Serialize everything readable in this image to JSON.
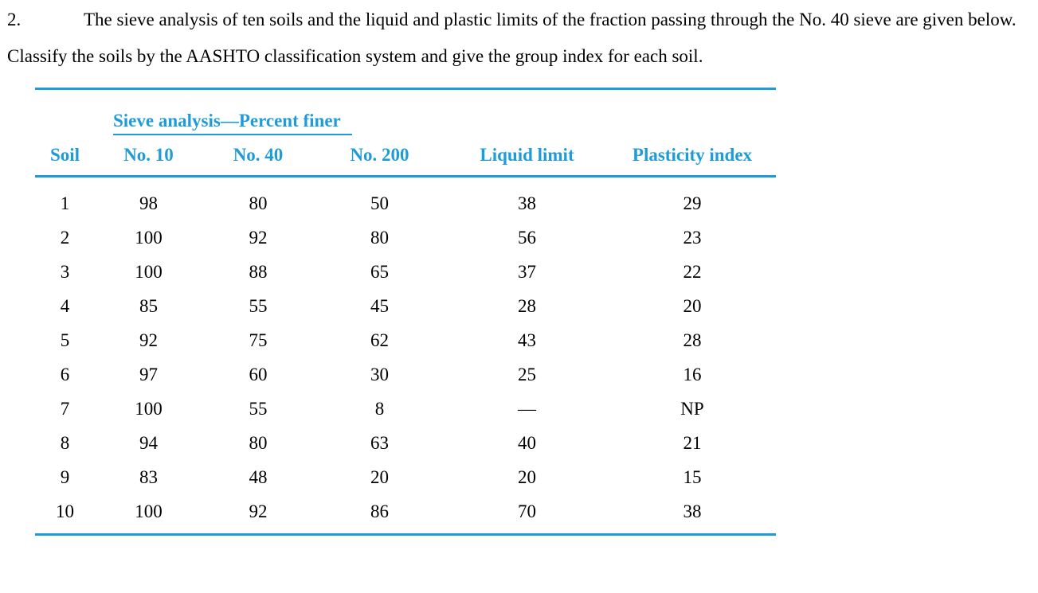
{
  "problem": {
    "number": "2.",
    "text": "The sieve analysis of ten soils and the liquid and plastic limits of the fraction passing through the No. 40 sieve are given below. Classify the soils by the AASHTO classification system and give the group index for each soil."
  },
  "table": {
    "accent_color": "#1F9CD8",
    "group_header": "Sieve analysis—Percent finer",
    "columns": [
      "Soil",
      "No. 10",
      "No. 40",
      "No. 200",
      "Liquid limit",
      "Plasticity index"
    ],
    "rows": [
      [
        "1",
        "98",
        "80",
        "50",
        "38",
        "29"
      ],
      [
        "2",
        "100",
        "92",
        "80",
        "56",
        "23"
      ],
      [
        "3",
        "100",
        "88",
        "65",
        "37",
        "22"
      ],
      [
        "4",
        "85",
        "55",
        "45",
        "28",
        "20"
      ],
      [
        "5",
        "92",
        "75",
        "62",
        "43",
        "28"
      ],
      [
        "6",
        "97",
        "60",
        "30",
        "25",
        "16"
      ],
      [
        "7",
        "100",
        "55",
        "8",
        "—",
        "NP"
      ],
      [
        "8",
        "94",
        "80",
        "63",
        "40",
        "21"
      ],
      [
        "9",
        "83",
        "48",
        "20",
        "20",
        "15"
      ],
      [
        "10",
        "100",
        "92",
        "86",
        "70",
        "38"
      ]
    ]
  }
}
